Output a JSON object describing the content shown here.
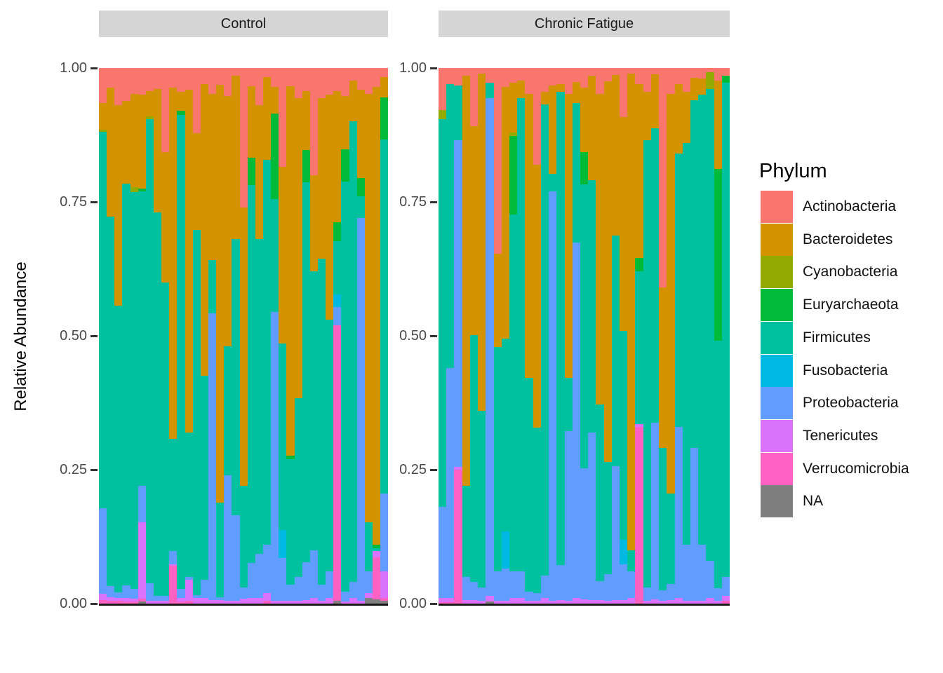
{
  "y_axis": {
    "title": "Relative Abundance",
    "tick_labels": [
      "1.00",
      "0.75",
      "0.50",
      "0.25",
      "0.00"
    ]
  },
  "legend": {
    "title": "Phylum",
    "entries": [
      {
        "label": "Actinobacteria",
        "color": "#F8766D"
      },
      {
        "label": "Bacteroidetes",
        "color": "#D39200"
      },
      {
        "label": "Cyanobacteria",
        "color": "#93AA00"
      },
      {
        "label": "Euryarchaeota",
        "color": "#00BA38"
      },
      {
        "label": "Firmicutes",
        "color": "#00C19F"
      },
      {
        "label": "Fusobacteria",
        "color": "#00B9E3"
      },
      {
        "label": "Proteobacteria",
        "color": "#619CFF"
      },
      {
        "label": "Tenericutes",
        "color": "#DB72FB"
      },
      {
        "label": "Verrucomicrobia",
        "color": "#FF61C3"
      },
      {
        "label": "NA",
        "color": "#7F7F7F"
      }
    ]
  },
  "chart_data": {
    "type": "bar",
    "stacked": true,
    "normalized": true,
    "orientation": "vertical",
    "title": "",
    "xlabel": "",
    "ylabel": "Relative Abundance",
    "ylim": [
      0,
      1
    ],
    "yticks": [
      1.0,
      0.75,
      0.5,
      0.25,
      0.0
    ],
    "grid": false,
    "legend_position": "right",
    "legend_title": "Phylum",
    "stack_order_top_to_bottom": [
      "Actinobacteria",
      "Bacteroidetes",
      "Cyanobacteria",
      "Euryarchaeota",
      "Firmicutes",
      "Fusobacteria",
      "Proteobacteria",
      "Tenericutes",
      "Verrucomicrobia",
      "NA"
    ],
    "facets": [
      {
        "label": "Control",
        "bars": [
          [
            0.066,
            0.049,
            0.004,
            0,
            0.703,
            0,
            0.16,
            0.012,
            0.006,
            0
          ],
          [
            0.037,
            0.24,
            0,
            0,
            0.69,
            0,
            0.021,
            0.007,
            0.005,
            0
          ],
          [
            0.069,
            0.375,
            0,
            0,
            0.535,
            0,
            0.011,
            0.005,
            0.005,
            0
          ],
          [
            0.061,
            0.155,
            0,
            0,
            0.75,
            0,
            0.024,
            0.006,
            0.004,
            0
          ],
          [
            0.048,
            0.175,
            0.009,
            0,
            0.74,
            0,
            0.019,
            0.005,
            0.004,
            0
          ],
          [
            0.05,
            0.175,
            0,
            0.006,
            0.549,
            0,
            0.068,
            0.143,
            0.005,
            0.004
          ],
          [
            0.043,
            0.047,
            0.005,
            0,
            0.867,
            0,
            0.033,
            0.005,
            0,
            0
          ],
          [
            0.039,
            0.231,
            0,
            0,
            0.715,
            0,
            0.01,
            0.005,
            0,
            0
          ],
          [
            0.157,
            0.243,
            0,
            0,
            0.585,
            0,
            0.01,
            0.005,
            0,
            0
          ],
          [
            0.037,
            0.655,
            0,
            0,
            0.21,
            0,
            0.025,
            0.003,
            0.07,
            0
          ],
          [
            0.045,
            0.035,
            0,
            0.008,
            0.885,
            0,
            0.017,
            0.006,
            0.004,
            0
          ],
          [
            0.041,
            0.639,
            0,
            0,
            0.27,
            0,
            0.005,
            0.04,
            0.005,
            0
          ],
          [
            0.122,
            0.18,
            0,
            0,
            0.682,
            0,
            0.006,
            0.01,
            0,
            0
          ],
          [
            0.03,
            0.545,
            0,
            0,
            0.38,
            0,
            0.034,
            0.011,
            0,
            0
          ],
          [
            0.048,
            0.31,
            0,
            0,
            0.1,
            0,
            0.535,
            0.007,
            0,
            0
          ],
          [
            0.032,
            0.78,
            0,
            0,
            0.176,
            0,
            0.005,
            0.007,
            0,
            0
          ],
          [
            0.052,
            0.468,
            0,
            0,
            0.24,
            0,
            0.235,
            0.005,
            0,
            0
          ],
          [
            0.015,
            0.305,
            0,
            0,
            0.515,
            0,
            0.16,
            0.005,
            0,
            0
          ],
          [
            0.26,
            0.52,
            0,
            0,
            0.19,
            0,
            0.021,
            0.009,
            0,
            0
          ],
          [
            0.034,
            0.133,
            0,
            0.051,
            0.706,
            0,
            0.066,
            0.01,
            0,
            0
          ],
          [
            0.069,
            0.25,
            0,
            0,
            0.588,
            0,
            0.082,
            0.011,
            0,
            0
          ],
          [
            0.017,
            0.155,
            0,
            0,
            0.718,
            0,
            0.09,
            0.015,
            0.005,
            0
          ],
          [
            0.035,
            0.05,
            0,
            0.16,
            0.21,
            0,
            0.54,
            0.005,
            0,
            0
          ],
          [
            0.185,
            0.33,
            0,
            0,
            0.347,
            0.053,
            0.08,
            0.005,
            0,
            0
          ],
          [
            0.034,
            0.69,
            0,
            0.006,
            0.235,
            0,
            0.03,
            0.005,
            0,
            0
          ],
          [
            0.056,
            0.56,
            0,
            0,
            0.334,
            0,
            0.045,
            0.005,
            0,
            0
          ],
          [
            0.043,
            0.11,
            0,
            0.06,
            0.71,
            0,
            0.07,
            0.007,
            0,
            0
          ],
          [
            0.2,
            0.18,
            0,
            0,
            0.52,
            0,
            0.09,
            0.01,
            0,
            0
          ],
          [
            0.056,
            0.3,
            0,
            0,
            0.609,
            0,
            0.03,
            0.005,
            0,
            0
          ],
          [
            0.05,
            0.42,
            0,
            0,
            0.47,
            0,
            0.05,
            0.01,
            0,
            0
          ],
          [
            0.043,
            0.245,
            0,
            0.035,
            0.1,
            0.024,
            0.033,
            0,
            0.515,
            0.005
          ],
          [
            0.052,
            0.1,
            0,
            0.06,
            0.766,
            0,
            0.018,
            0.004,
            0,
            0
          ],
          [
            0.024,
            0.076,
            0,
            0,
            0.86,
            0,
            0.03,
            0.01,
            0,
            0
          ],
          [
            0.04,
            0.165,
            0,
            0.035,
            0.04,
            0,
            0.715,
            0.005,
            0,
            0
          ],
          [
            0.048,
            0.8,
            0,
            0,
            0.092,
            0,
            0.04,
            0.01,
            0,
            0.01
          ],
          [
            0.035,
            0.855,
            0,
            0.007,
            0.005,
            0,
            0,
            0.012,
            0.078,
            0.008
          ],
          [
            0.017,
            0.038,
            0,
            0.078,
            0.662,
            0,
            0.145,
            0.05,
            0.005,
            0.005
          ]
        ]
      },
      {
        "label": "Chronic Fatigue",
        "bars": [
          [
            0.078,
            0,
            0.017,
            0,
            0.725,
            0,
            0.17,
            0.007,
            0.003,
            0
          ],
          [
            0.03,
            0,
            0,
            0,
            0.53,
            0,
            0.43,
            0.007,
            0.003,
            0
          ],
          [
            0.033,
            0,
            0,
            0,
            0.102,
            0,
            0.61,
            0.005,
            0.25,
            0
          ],
          [
            0.015,
            0.765,
            0,
            0,
            0.17,
            0,
            0.044,
            0.006,
            0,
            0
          ],
          [
            0.109,
            0.39,
            0,
            0,
            0.46,
            0,
            0.035,
            0.006,
            0,
            0
          ],
          [
            0.01,
            0.63,
            0,
            0,
            0.33,
            0,
            0.025,
            0.005,
            0,
            0
          ],
          [
            0.028,
            0,
            0,
            0,
            0.028,
            0,
            0.93,
            0.01,
            0,
            0.004
          ],
          [
            0.347,
            0.174,
            0,
            0,
            0.419,
            0,
            0.055,
            0.005,
            0,
            0
          ],
          [
            0.035,
            0.47,
            0,
            0,
            0.36,
            0.07,
            0.06,
            0.005,
            0,
            0
          ],
          [
            0.028,
            0.092,
            0.007,
            0.147,
            0.666,
            0,
            0.05,
            0.01,
            0,
            0
          ],
          [
            0.024,
            0.032,
            0,
            0,
            0.884,
            0,
            0.05,
            0.01,
            0,
            0
          ],
          [
            0.048,
            0.53,
            0,
            0,
            0.4,
            0,
            0.017,
            0.005,
            0,
            0
          ],
          [
            0.181,
            0.49,
            0,
            0,
            0.31,
            0,
            0.014,
            0.005,
            0,
            0
          ],
          [
            0.044,
            0.024,
            0,
            0,
            0.88,
            0,
            0.042,
            0.01,
            0,
            0
          ],
          [
            0.033,
            0.165,
            0,
            0,
            0.032,
            0,
            0.765,
            0.005,
            0,
            0
          ],
          [
            0.03,
            0.015,
            0,
            0,
            0.883,
            0,
            0.065,
            0.007,
            0,
            0
          ],
          [
            0.048,
            0.53,
            0,
            0,
            0.1,
            0,
            0.317,
            0.005,
            0,
            0
          ],
          [
            0.026,
            0.04,
            0,
            0,
            0.26,
            0,
            0.664,
            0.01,
            0,
            0
          ],
          [
            0.037,
            0.12,
            0,
            0.06,
            0.53,
            0,
            0.245,
            0.008,
            0,
            0
          ],
          [
            0.015,
            0.195,
            0,
            0,
            0.47,
            0,
            0.313,
            0.007,
            0,
            0
          ],
          [
            0.048,
            0.58,
            0,
            0,
            0.33,
            0,
            0.035,
            0.007,
            0,
            0
          ],
          [
            0.025,
            0.71,
            0,
            0,
            0.21,
            0,
            0.05,
            0.005,
            0,
            0
          ],
          [
            0.013,
            0.3,
            0,
            0,
            0.43,
            0,
            0.25,
            0.007,
            0,
            0
          ],
          [
            0.091,
            0.4,
            0,
            0,
            0.39,
            0.046,
            0.066,
            0.007,
            0,
            0
          ],
          [
            0.01,
            0.89,
            0,
            0,
            0.04,
            0,
            0.05,
            0.01,
            0,
            0
          ],
          [
            0.03,
            0.325,
            0,
            0.025,
            0.285,
            0,
            0,
            0.005,
            0.33,
            0
          ],
          [
            0.045,
            0.09,
            0,
            0,
            0.835,
            0,
            0.025,
            0.005,
            0,
            0
          ],
          [
            0.012,
            0.1,
            0,
            0,
            0.55,
            0,
            0.33,
            0.008,
            0,
            0
          ],
          [
            0.41,
            0.3,
            0,
            0,
            0.265,
            0,
            0.02,
            0.005,
            0,
            0
          ],
          [
            0.048,
            0.746,
            0,
            0,
            0.17,
            0,
            0.03,
            0.006,
            0,
            0
          ],
          [
            0.03,
            0.13,
            0,
            0,
            0.51,
            0,
            0.32,
            0.01,
            0,
            0
          ],
          [
            0.044,
            0.096,
            0,
            0,
            0.75,
            0,
            0.105,
            0.005,
            0,
            0
          ],
          [
            0.018,
            0.042,
            0,
            0,
            0.65,
            0,
            0.285,
            0.005,
            0,
            0
          ],
          [
            0.02,
            0.03,
            0,
            0,
            0.84,
            0,
            0.105,
            0.005,
            0,
            0
          ],
          [
            0.008,
            0,
            0.031,
            0,
            0.881,
            0,
            0.07,
            0.01,
            0,
            0
          ],
          [
            0.024,
            0.165,
            0,
            0.32,
            0.462,
            0,
            0.024,
            0.005,
            0,
            0
          ],
          [
            0.015,
            0,
            0,
            0.012,
            0.923,
            0,
            0.035,
            0.01,
            0.005,
            0
          ]
        ]
      }
    ]
  }
}
